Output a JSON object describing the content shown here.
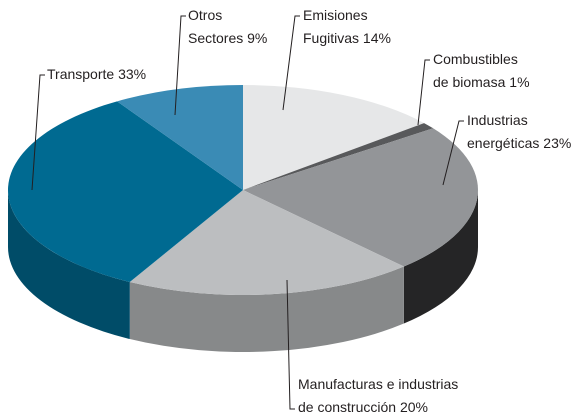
{
  "chart_data": {
    "type": "pie3d",
    "categories": [
      "Emisiones\nFugitivas",
      "Combustibles\nde biomasa",
      "Industrias\nenergéticas",
      "Manufacturas e industrias\nde construcción",
      "Transporte",
      "Otros\nSectores"
    ],
    "values": [
      14,
      1,
      23,
      20,
      33,
      9
    ],
    "value_labels": [
      "14%",
      "1%",
      "23%",
      "20%",
      "33%",
      "9%"
    ],
    "colors": [
      "#e6e7e8",
      "#58595b",
      "#939598",
      "#bcbec0",
      "#006a91",
      "#3a8bb5"
    ]
  }
}
